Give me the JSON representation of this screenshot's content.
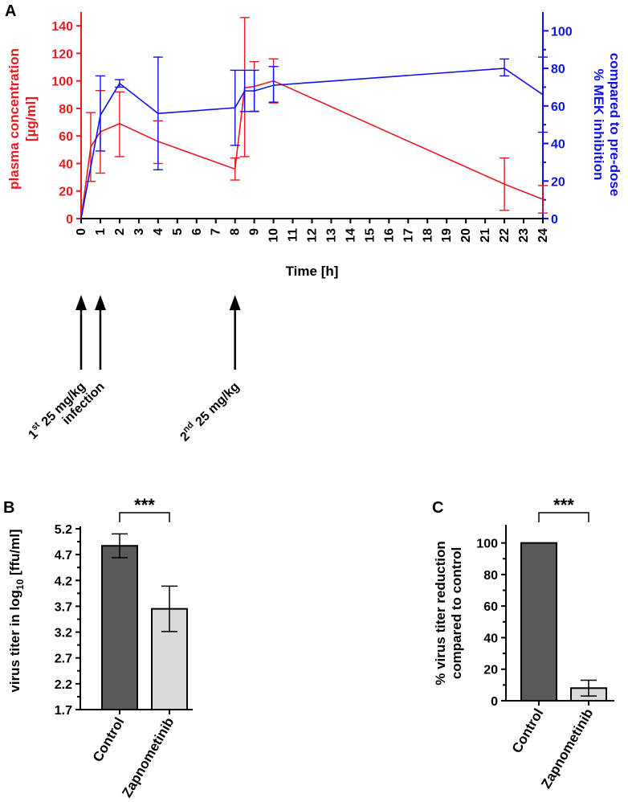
{
  "panels": {
    "a": "A",
    "b": "B",
    "c": "C"
  },
  "colors": {
    "red": "#e8191f",
    "blue": "#1111e6",
    "dark": "#595959",
    "light": "#d9d9d9",
    "black": "#000000"
  },
  "chart_data": [
    {
      "id": "A",
      "type": "line",
      "title": "",
      "xlabel": "Time  [h]",
      "x_ticks": [
        "0",
        "1",
        "2",
        "3",
        "4",
        "5",
        "6",
        "7",
        "8",
        "9",
        "10",
        "11",
        "12",
        "13",
        "14",
        "15",
        "16",
        "17",
        "18",
        "19",
        "20",
        "21",
        "22",
        "23",
        "24"
      ],
      "xlim": [
        0,
        24
      ],
      "y_left": {
        "label_line1": "plasma concentration",
        "label_line2": "[µg/ml]",
        "ticks": [
          "0",
          "20",
          "40",
          "60",
          "80",
          "100",
          "120",
          "140"
        ],
        "lim": [
          0,
          150
        ]
      },
      "y_right": {
        "label_line1": "% MEK inhibition",
        "label_line2": "compared to pre-dose",
        "ticks": [
          "0",
          "20",
          "40",
          "60",
          "80",
          "100"
        ],
        "lim": [
          0,
          110
        ]
      },
      "series": [
        {
          "name": "plasma concentration",
          "axis": "left",
          "color": "#e8191f",
          "points": [
            {
              "x": 0,
              "y": 0
            },
            {
              "x": 0.5,
              "y": 52,
              "lo": 27,
              "hi": 77
            },
            {
              "x": 1,
              "y": 63,
              "lo": 33,
              "hi": 93
            },
            {
              "x": 2,
              "y": 69,
              "lo": 45,
              "hi": 92
            },
            {
              "x": 4,
              "y": 56,
              "lo": 40,
              "hi": 71
            },
            {
              "x": 8,
              "y": 36,
              "lo": 28,
              "hi": 44
            },
            {
              "x": 8.5,
              "y": 95,
              "lo": 45,
              "hi": 146
            },
            {
              "x": 9,
              "y": 96,
              "lo": 78,
              "hi": 114
            },
            {
              "x": 10,
              "y": 100,
              "lo": 84,
              "hi": 116
            },
            {
              "x": 22,
              "y": 25,
              "lo": 6,
              "hi": 44
            },
            {
              "x": 24,
              "y": 14,
              "lo": 4,
              "hi": 24
            }
          ]
        },
        {
          "name": "% MEK inhibition",
          "axis": "right",
          "color": "#1111e6",
          "points": [
            {
              "x": 0,
              "y": 0
            },
            {
              "x": 1,
              "y": 55,
              "lo": 36,
              "hi": 76
            },
            {
              "x": 2,
              "y": 72,
              "lo": 70,
              "hi": 74
            },
            {
              "x": 4,
              "y": 56,
              "lo": 26,
              "hi": 86
            },
            {
              "x": 8,
              "y": 59,
              "lo": 39,
              "hi": 79
            },
            {
              "x": 8.5,
              "y": 68,
              "lo": 57,
              "hi": 79
            },
            {
              "x": 9,
              "y": 68,
              "lo": 57,
              "hi": 79
            },
            {
              "x": 10,
              "y": 71,
              "lo": 62,
              "hi": 81
            },
            {
              "x": 22,
              "y": 80,
              "lo": 76,
              "hi": 85
            },
            {
              "x": 24,
              "y": 66,
              "lo": 46,
              "hi": 86
            }
          ]
        }
      ],
      "annotations": [
        {
          "x": 0,
          "main": "1",
          "sup": "st",
          "rest": " 25 mg/kg"
        },
        {
          "x": 1,
          "main": "infection",
          "sup": "",
          "rest": ""
        },
        {
          "x": 8,
          "main": "2",
          "sup": "nd",
          "rest": " 25 mg/kg"
        }
      ]
    },
    {
      "id": "B",
      "type": "bar",
      "categories": [
        "Control",
        "Zapnometinib"
      ],
      "values": [
        4.87,
        3.65
      ],
      "err_lo": [
        4.64,
        3.21
      ],
      "err_hi": [
        5.1,
        4.09
      ],
      "ylabel": "virus titer in log",
      "ylabel_sub": "10",
      "ylabel_suffix": " [ffu/ml]",
      "y_ticks": [
        "1.7",
        "2.2",
        "2.7",
        "3.2",
        "3.7",
        "4.2",
        "4.7",
        "5.2"
      ],
      "ylim": [
        1.7,
        5.2
      ],
      "significance": "***"
    },
    {
      "id": "C",
      "type": "bar",
      "categories": [
        "Control",
        "Zapnometinib"
      ],
      "values": [
        100,
        8
      ],
      "err_lo": [
        100,
        3
      ],
      "err_hi": [
        100,
        13
      ],
      "ylabel_line1": "% virus titer reduction",
      "ylabel_line2": "compared to control",
      "y_ticks": [
        "0",
        "20",
        "40",
        "60",
        "80",
        "100"
      ],
      "ylim": [
        0,
        110
      ],
      "significance": "***"
    }
  ]
}
